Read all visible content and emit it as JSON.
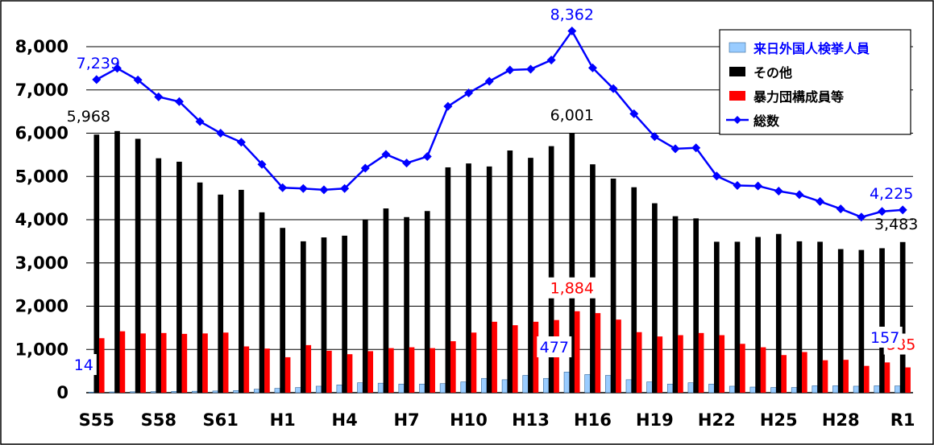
{
  "chart_data": {
    "type": "bar",
    "x_ticks": [
      "S55",
      "S58",
      "S61",
      "H1",
      "H4",
      "H7",
      "H10",
      "H13",
      "H16",
      "H19",
      "H22",
      "H25",
      "H28",
      "R1"
    ],
    "ylim": [
      0,
      8000
    ],
    "y_ticks": [
      "0",
      "1,000",
      "2,000",
      "3,000",
      "4,000",
      "5,000",
      "6,000",
      "7,000",
      "8,000"
    ],
    "grid": true,
    "legend_position": "top-right",
    "series": [
      {
        "name": "来日外国人検挙人員",
        "kind": "bar",
        "color": "#99ccff",
        "values": [
          14,
          18,
          22,
          26,
          30,
          34,
          40,
          50,
          80,
          100,
          120,
          150,
          180,
          230,
          220,
          200,
          200,
          210,
          250,
          330,
          300,
          400,
          330,
          477,
          420,
          400,
          300,
          250,
          200,
          230,
          200,
          150,
          130,
          120,
          120,
          160,
          160,
          150,
          160,
          157
        ]
      },
      {
        "name": "その他",
        "kind": "bar",
        "color": "#000000",
        "values": [
          5968,
          6050,
          5870,
          5420,
          5340,
          4860,
          4580,
          4690,
          4170,
          3810,
          3500,
          3590,
          3630,
          4000,
          4260,
          4060,
          4200,
          5210,
          5300,
          5230,
          5600,
          5430,
          5700,
          6001,
          5280,
          4950,
          4750,
          4380,
          4080,
          4030,
          3490,
          3490,
          3600,
          3670,
          3500,
          3490,
          3320,
          3300,
          3340,
          3483
        ]
      },
      {
        "name": "暴力団構成員等",
        "kind": "bar",
        "color": "#ff0000",
        "values": [
          1260,
          1420,
          1370,
          1380,
          1360,
          1370,
          1390,
          1070,
          1020,
          820,
          1100,
          970,
          890,
          960,
          1030,
          1050,
          1030,
          1190,
          1390,
          1640,
          1560,
          1640,
          1680,
          1884,
          1840,
          1690,
          1400,
          1300,
          1330,
          1380,
          1330,
          1130,
          1050,
          870,
          940,
          750,
          760,
          620,
          700,
          585
        ]
      },
      {
        "name": "総数",
        "kind": "line",
        "color": "#0000ff",
        "values": [
          7239,
          7500,
          7230,
          6840,
          6730,
          6270,
          6000,
          5790,
          5280,
          4740,
          4720,
          4690,
          4720,
          5190,
          5510,
          5310,
          5460,
          6620,
          6930,
          7200,
          7460,
          7480,
          7690,
          8362,
          7510,
          7030,
          6450,
          5920,
          5640,
          5660,
          5010,
          4790,
          4780,
          4660,
          4580,
          4420,
          4250,
          4060,
          4190,
          4225
        ]
      }
    ],
    "data_labels": [
      {
        "text": "7,239",
        "series": 3,
        "index": 0,
        "color": "#0000ff"
      },
      {
        "text": "8,362",
        "series": 3,
        "index": 23,
        "color": "#0000ff"
      },
      {
        "text": "4,225",
        "series": 3,
        "index": 39,
        "color": "#0000ff"
      },
      {
        "text": "5,968",
        "series": 1,
        "index": 0,
        "color": "#000000"
      },
      {
        "text": "6,001",
        "series": 1,
        "index": 23,
        "color": "#000000"
      },
      {
        "text": "3,483",
        "series": 1,
        "index": 39,
        "color": "#000000"
      },
      {
        "text": "1,884",
        "series": 2,
        "index": 23,
        "color": "#ff0000"
      },
      {
        "text": "585",
        "series": 2,
        "index": 39,
        "color": "#ff0000"
      },
      {
        "text": "14",
        "series": 0,
        "index": 0,
        "color": "#0000ff"
      },
      {
        "text": "477",
        "series": 0,
        "index": 23,
        "color": "#0000ff"
      },
      {
        "text": "157",
        "series": 0,
        "index": 39,
        "color": "#0000ff"
      }
    ]
  }
}
